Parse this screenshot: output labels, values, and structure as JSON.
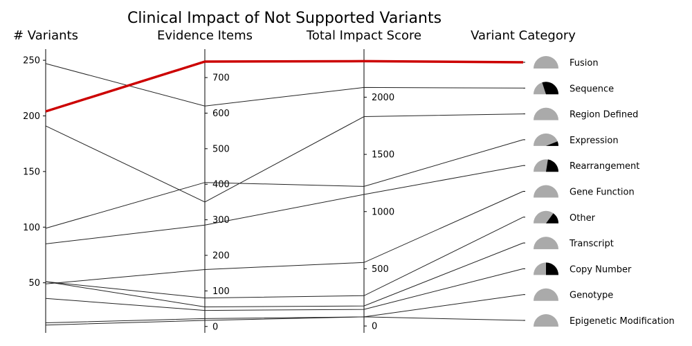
{
  "chart_data": {
    "type": "parallel_coordinates",
    "title": "Clinical Impact of Not Supported Variants",
    "axes": [
      {
        "key": "variants",
        "label": "# Variants",
        "range": [
          5,
          260
        ],
        "ticks": [
          50,
          100,
          150,
          200,
          250
        ]
      },
      {
        "key": "evidence",
        "label": "Evidence Items",
        "range": [
          -18,
          780
        ],
        "ticks": [
          0,
          100,
          200,
          300,
          400,
          500,
          600,
          700
        ]
      },
      {
        "key": "impact",
        "label": "Total Impact Score",
        "range": [
          -60,
          2420
        ],
        "ticks": [
          0,
          500,
          1000,
          1500,
          2000
        ]
      },
      {
        "key": "category",
        "label": "Variant Category"
      }
    ],
    "highlight_color": "#cc0000",
    "line_color": "#222222",
    "pie_gray": "#aaaaaa",
    "pie_dark": "#000000",
    "rows": [
      {
        "category": "Fusion",
        "variants": 204,
        "evidence": 745,
        "impact": 2315,
        "dark_fraction": 0.0,
        "highlight": true
      },
      {
        "category": "Sequence",
        "variants": 247,
        "evidence": 620,
        "impact": 2085,
        "dark_fraction": 0.6,
        "highlight": false
      },
      {
        "category": "Region Defined",
        "variants": 191,
        "evidence": 350,
        "impact": 1830,
        "dark_fraction": 0.0,
        "highlight": false
      },
      {
        "category": "Expression",
        "variants": 99,
        "evidence": 405,
        "impact": 1220,
        "dark_fraction": 0.12,
        "highlight": false
      },
      {
        "category": "Rearrangement",
        "variants": 85,
        "evidence": 285,
        "impact": 1150,
        "dark_fraction": 0.45,
        "highlight": false
      },
      {
        "category": "Gene Function",
        "variants": 49,
        "evidence": 160,
        "impact": 555,
        "dark_fraction": 0.0,
        "highlight": false
      },
      {
        "category": "Other",
        "variants": 51,
        "evidence": 80,
        "impact": 265,
        "dark_fraction": 0.3,
        "highlight": false
      },
      {
        "category": "Transcript",
        "variants": 51,
        "evidence": 55,
        "impact": 175,
        "dark_fraction": 0.0,
        "highlight": false
      },
      {
        "category": "Copy Number",
        "variants": 36,
        "evidence": 45,
        "impact": 145,
        "dark_fraction": 0.5,
        "highlight": false
      },
      {
        "category": "Genotype",
        "variants": 14,
        "evidence": 22,
        "impact": 80,
        "dark_fraction": 0.0,
        "highlight": false
      },
      {
        "category": "Epigenetic Modification",
        "variants": 12,
        "evidence": 17,
        "impact": 80,
        "dark_fraction": 0.0,
        "highlight": false
      }
    ]
  }
}
